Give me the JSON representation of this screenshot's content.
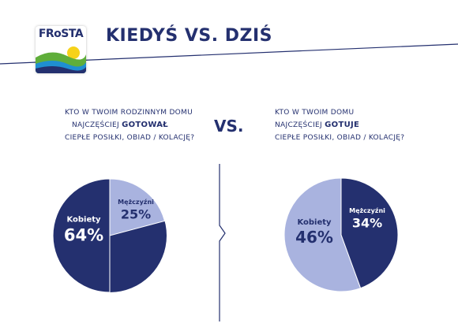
{
  "brand": {
    "logo_text": "FRoSTA"
  },
  "header": {
    "title": "KIEDYŚ VS. DZIŚ"
  },
  "vs_label": "VS.",
  "left_question": {
    "line1": "KTO W TWOIM RODZINNYM DOMU",
    "line2_pre": "NAJCZĘŚCIEJ ",
    "line2_emph": "GOTOWAŁ",
    "line3": "CIEPŁE POSIŁKI, OBIAD / KOLACJĘ?"
  },
  "right_question": {
    "line1": "KTO W TWOIM DOMU",
    "line2_pre": "NAJCZĘŚCIEJ ",
    "line2_emph": "GOTUJE",
    "line3": "CIEPŁE POSIŁKI, OBIAD / KOLACJĘ?"
  },
  "colors": {
    "dark": "#24306f",
    "light": "#a9b3df",
    "accent_line": "#24306f"
  },
  "chart_data": [
    {
      "type": "pie",
      "title": "",
      "slices": [
        {
          "label": "Kobiety",
          "value": 64,
          "display": "64%",
          "color": "#24306f"
        },
        {
          "label": "Mężczyźni",
          "value": 25,
          "display": "25%",
          "color": "#a9b3df"
        }
      ]
    },
    {
      "type": "pie",
      "title": "",
      "slices": [
        {
          "label": "Kobiety",
          "value": 46,
          "display": "46%",
          "color": "#a9b3df"
        },
        {
          "label": "Mężczyźni",
          "value": 34,
          "display": "34%",
          "color": "#24306f"
        }
      ]
    }
  ]
}
